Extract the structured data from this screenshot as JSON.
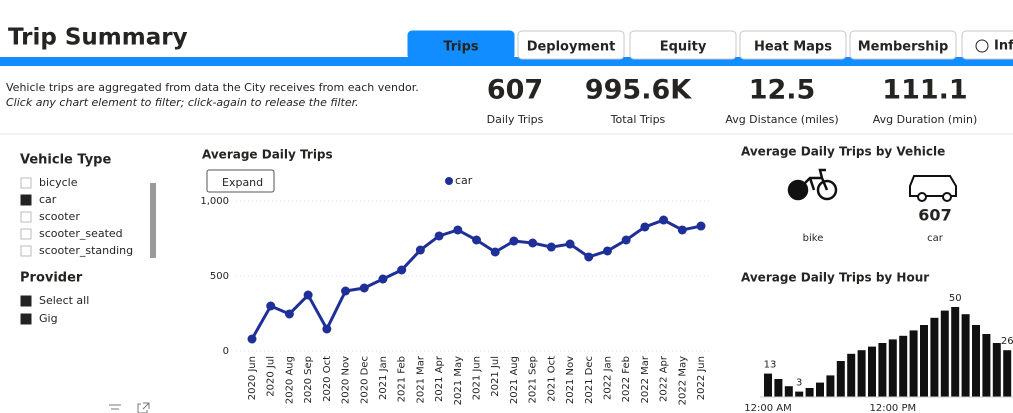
{
  "header": {
    "title": "Trip Summary"
  },
  "tabs": {
    "items": [
      "Trips",
      "Deployment",
      "Equity",
      "Heat Maps",
      "Membership",
      "Info"
    ],
    "active": 0
  },
  "description": [
    "Vehicle trips are aggregated from data the City receives from each vendor.",
    "Click any chart element to filter; click-again to release the filter."
  ],
  "kpis": [
    {
      "value": "607",
      "label": "Daily Trips"
    },
    {
      "value": "995.6K",
      "label": "Total Trips"
    },
    {
      "value": "12.5",
      "label": "Avg Distance (miles)"
    },
    {
      "value": "111.1",
      "label": "Avg Duration (min)"
    }
  ],
  "filters": [
    {
      "title": "Vehicle Type",
      "options": [
        "bicycle",
        "car",
        "scooter",
        "scooter_seated",
        "scooter_standing"
      ],
      "selected": [
        "car"
      ]
    },
    {
      "title": "Provider",
      "options": [
        "Select all",
        "Gig"
      ],
      "selected": [
        "Select all",
        "Gig"
      ]
    }
  ],
  "charts": [
    {
      "type": "line",
      "title": "Average Daily Trips",
      "button": "Expand",
      "categories": [
        "2020 Jun",
        "2020 Jul",
        "2020 Aug",
        "2020 Sep",
        "2020 Oct",
        "2020 Nov",
        "2020 Dec",
        "2021 Jan",
        "2021 Feb",
        "2021 Mar",
        "2021 Apr",
        "2021 May",
        "2021 Jun",
        "2021 Jul",
        "2021 Aug",
        "2021 Sep",
        "2021 Oct",
        "2021 Nov",
        "2021 Dec",
        "2022 Jan",
        "2022 Feb",
        "2022 Mar",
        "2022 Apr",
        "2022 May",
        "2022 Jun"
      ],
      "series": [
        {
          "name": "car",
          "color": "#1f2f98",
          "values": [
            80,
            300,
            247,
            373,
            147,
            400,
            420,
            480,
            540,
            673,
            767,
            807,
            740,
            660,
            733,
            720,
            693,
            713,
            627,
            667,
            740,
            827,
            873,
            807,
            833
          ]
        }
      ],
      "ylim": [
        0,
        1000
      ],
      "yticks": [
        0,
        500,
        {
          "value": 1000,
          "label": "1,000"
        }
      ]
    },
    {
      "type": "icons",
      "title": "Average Daily Trips by Vehicle",
      "categories": [
        "bike",
        "car"
      ],
      "values": [
        null,
        607
      ],
      "color": "#1f2f98"
    },
    {
      "type": "bar",
      "title": "Average Daily Trips by Hour",
      "categories": [
        "12:00 AM",
        null,
        null,
        null,
        null,
        null,
        null,
        null,
        null,
        null,
        null,
        null,
        "12:00 PM",
        null,
        null,
        null,
        null,
        null,
        null,
        null,
        null,
        null,
        null,
        null
      ],
      "values": [
        13,
        10,
        6,
        3,
        5,
        8,
        12,
        20,
        24,
        26,
        28,
        30,
        32,
        34,
        37,
        40,
        44,
        48,
        50,
        46,
        40,
        35,
        30,
        26
      ],
      "color": "#111111"
    }
  ]
}
